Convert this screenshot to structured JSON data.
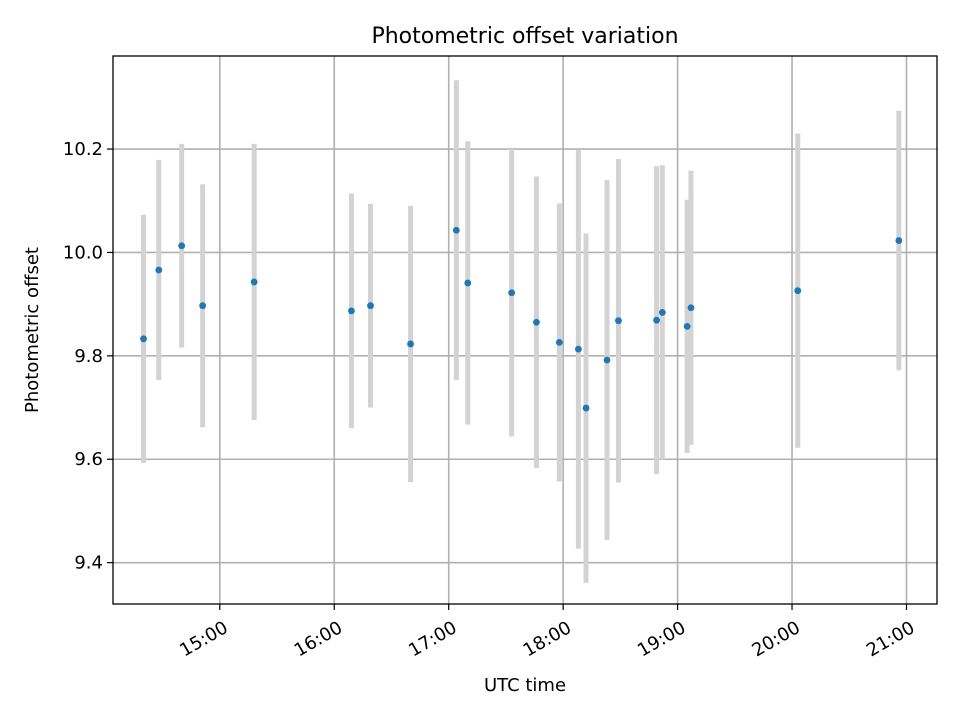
{
  "chart_data": {
    "type": "scatter",
    "title": "Photometric offset variation",
    "xlabel": "UTC time",
    "ylabel": "Photometric offset",
    "xlim": [
      "14:04",
      "21:16"
    ],
    "ylim": [
      9.32,
      10.38
    ],
    "xticks": [
      {
        "time": "15:00",
        "label": "15:00"
      },
      {
        "time": "16:00",
        "label": "16:00"
      },
      {
        "time": "17:00",
        "label": "17:00"
      },
      {
        "time": "18:00",
        "label": "18:00"
      },
      {
        "time": "19:00",
        "label": "19:00"
      },
      {
        "time": "20:00",
        "label": "20:00"
      },
      {
        "time": "21:00",
        "label": "21:00"
      }
    ],
    "yticks": [
      {
        "value": 9.4,
        "label": "9.4"
      },
      {
        "value": 9.6,
        "label": "9.6"
      },
      {
        "value": 9.8,
        "label": "9.8"
      },
      {
        "value": 10.0,
        "label": "10.0"
      },
      {
        "value": 10.2,
        "label": "10.2"
      }
    ],
    "grid": true,
    "colors": {
      "point": "#1f77b4",
      "errorbar": "#d3d3d3"
    },
    "points": [
      {
        "x": "14:20",
        "y": 9.833,
        "yerr": 0.24
      },
      {
        "x": "14:28",
        "y": 9.966,
        "yerr": 0.213
      },
      {
        "x": "14:40",
        "y": 10.013,
        "yerr": 0.197
      },
      {
        "x": "14:51",
        "y": 9.897,
        "yerr": 0.235
      },
      {
        "x": "15:18",
        "y": 9.943,
        "yerr": 0.267
      },
      {
        "x": "16:09",
        "y": 9.887,
        "yerr": 0.227
      },
      {
        "x": "16:19",
        "y": 9.897,
        "yerr": 0.197
      },
      {
        "x": "16:40",
        "y": 9.823,
        "yerr": 0.267
      },
      {
        "x": "17:04",
        "y": 10.043,
        "yerr": 0.29
      },
      {
        "x": "17:10",
        "y": 9.941,
        "yerr": 0.274
      },
      {
        "x": "17:33",
        "y": 9.922,
        "yerr": 0.278
      },
      {
        "x": "17:46",
        "y": 9.865,
        "yerr": 0.282
      },
      {
        "x": "17:58",
        "y": 9.826,
        "yerr": 0.269
      },
      {
        "x": "18:08",
        "y": 9.813,
        "yerr": 0.386
      },
      {
        "x": "18:12",
        "y": 9.699,
        "yerr": 0.338
      },
      {
        "x": "18:23",
        "y": 9.792,
        "yerr": 0.348
      },
      {
        "x": "18:29",
        "y": 9.868,
        "yerr": 0.313
      },
      {
        "x": "18:49",
        "y": 9.869,
        "yerr": 0.298
      },
      {
        "x": "18:52",
        "y": 9.884,
        "yerr": 0.285
      },
      {
        "x": "19:05",
        "y": 9.857,
        "yerr": 0.245
      },
      {
        "x": "19:07",
        "y": 9.893,
        "yerr": 0.265
      },
      {
        "x": "20:03",
        "y": 9.926,
        "yerr": 0.304
      },
      {
        "x": "20:56",
        "y": 10.023,
        "yerr": 0.251
      }
    ]
  }
}
